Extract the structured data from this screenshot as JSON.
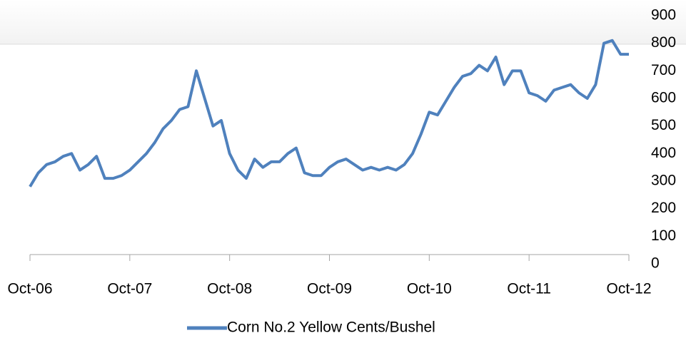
{
  "chart_data": {
    "type": "line",
    "categories": [
      "Oct-06",
      null,
      null,
      null,
      null,
      null,
      null,
      null,
      null,
      null,
      null,
      null,
      "Oct-07",
      null,
      null,
      null,
      null,
      null,
      null,
      null,
      null,
      null,
      null,
      null,
      "Oct-08",
      null,
      null,
      null,
      null,
      null,
      null,
      null,
      null,
      null,
      null,
      null,
      "Oct-09",
      null,
      null,
      null,
      null,
      null,
      null,
      null,
      null,
      null,
      null,
      null,
      "Oct-10",
      null,
      null,
      null,
      null,
      null,
      null,
      null,
      null,
      null,
      null,
      null,
      "Oct-11",
      null,
      null,
      null,
      null,
      null,
      null,
      null,
      null,
      null,
      null,
      null,
      "Oct-12"
    ],
    "series": [
      {
        "name": "Corn No.2 Yellow Cents/Bushel",
        "color": "#4f81bd",
        "values": [
          280,
          330,
          360,
          370,
          390,
          400,
          340,
          360,
          390,
          310,
          310,
          320,
          340,
          370,
          400,
          440,
          490,
          520,
          560,
          570,
          700,
          600,
          500,
          520,
          400,
          340,
          310,
          380,
          350,
          370,
          370,
          400,
          420,
          330,
          320,
          320,
          350,
          370,
          380,
          360,
          340,
          350,
          340,
          350,
          340,
          360,
          400,
          470,
          550,
          540,
          590,
          640,
          680,
          690,
          720,
          700,
          750,
          650,
          700,
          700,
          620,
          610,
          590,
          630,
          640,
          650,
          620,
          600,
          650,
          800,
          810,
          760,
          760
        ]
      }
    ],
    "ylim": [
      0,
      900
    ],
    "yticks": [
      0,
      100,
      200,
      300,
      400,
      500,
      600,
      700,
      800,
      900
    ],
    "grid": false,
    "legend": "bottom"
  }
}
